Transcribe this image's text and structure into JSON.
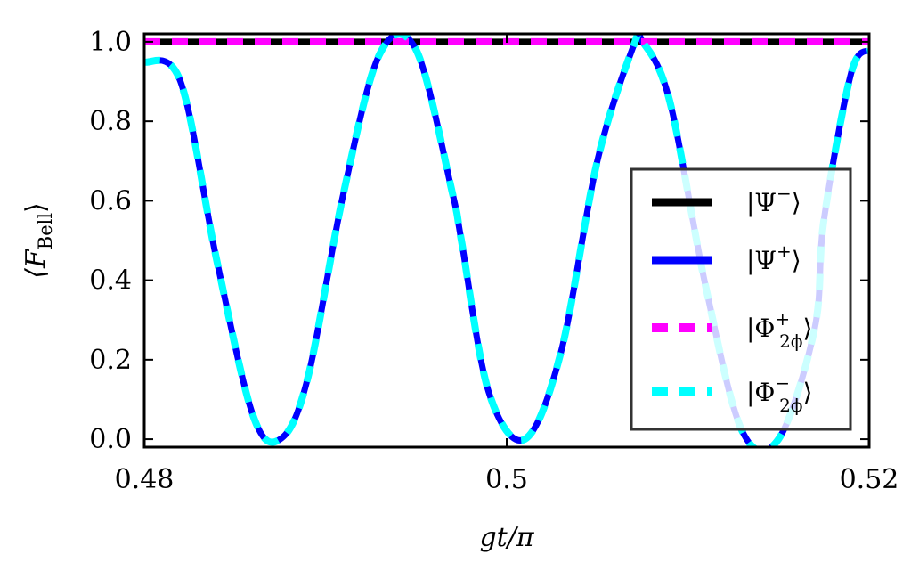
{
  "chart_data": {
    "type": "line",
    "title": "",
    "xlabel": "gt/π",
    "ylabel": "⟨F_Bell⟩",
    "ylabel_main": "⟨F",
    "ylabel_sub": "Bell",
    "ylabel_close": "⟩",
    "xlim": [
      0.48,
      0.52
    ],
    "ylim": [
      -0.02,
      1.02
    ],
    "xticks": [
      0.48,
      0.5,
      0.52
    ],
    "xtick_labels": [
      "0.48",
      "0.5",
      "0.52"
    ],
    "yticks": [
      0.0,
      0.2,
      0.4,
      0.6,
      0.8,
      1.0
    ],
    "ytick_labels": [
      "0.0",
      "0.2",
      "0.4",
      "0.6",
      "0.8",
      "1.0"
    ],
    "grid": false,
    "legend_position": "right",
    "series": [
      {
        "name": "|Ψ⁻⟩",
        "label_main": "|Ψ",
        "label_sup": "−",
        "label_sub": "",
        "label_close": "⟩",
        "color": "#000000",
        "style": "solid",
        "x": [
          0.48,
          0.52
        ],
        "y": [
          1.0,
          1.0
        ]
      },
      {
        "name": "|Ψ⁺⟩",
        "label_main": "|Ψ",
        "label_sup": "+",
        "label_sub": "",
        "label_close": "⟩",
        "color": "#0000ff",
        "style": "solid",
        "x": [
          0.48,
          0.482,
          0.484,
          0.486,
          0.4875,
          0.489,
          0.491,
          0.493,
          0.495,
          0.497,
          0.4975,
          0.499,
          0.501,
          0.503,
          0.505,
          0.507,
          0.5075,
          0.509,
          0.511,
          0.513,
          0.515,
          0.517,
          0.5175,
          0.519,
          0.52
        ],
        "y": [
          0.95,
          0.9,
          0.45,
          0.06,
          0.0,
          0.15,
          0.62,
          0.97,
          0.98,
          0.62,
          0.5,
          0.12,
          0.0,
          0.22,
          0.7,
          0.99,
          1.0,
          0.85,
          0.38,
          0.02,
          0.0,
          0.28,
          0.55,
          0.92,
          0.98
        ]
      },
      {
        "name": "|Φ₂ϕ⁺⟩",
        "label_main": "|Φ",
        "label_sup": "+",
        "label_sub": "2ϕ",
        "label_close": "⟩",
        "color": "#ff00ff",
        "style": "dashed",
        "x": [
          0.48,
          0.52
        ],
        "y": [
          1.0,
          1.0
        ]
      },
      {
        "name": "|Φ₂ϕ⁻⟩",
        "label_main": "|Φ",
        "label_sup": "−",
        "label_sub": "2ϕ",
        "label_close": "⟩",
        "color": "#00ffff",
        "style": "dashed",
        "x": [
          0.48,
          0.482,
          0.484,
          0.486,
          0.4875,
          0.489,
          0.491,
          0.493,
          0.495,
          0.497,
          0.4975,
          0.499,
          0.501,
          0.503,
          0.505,
          0.507,
          0.5075,
          0.509,
          0.511,
          0.513,
          0.515,
          0.517,
          0.5175,
          0.519,
          0.52
        ],
        "y": [
          0.95,
          0.9,
          0.45,
          0.06,
          0.0,
          0.15,
          0.62,
          0.97,
          0.98,
          0.62,
          0.5,
          0.12,
          0.0,
          0.22,
          0.7,
          0.99,
          1.0,
          0.85,
          0.38,
          0.02,
          0.0,
          0.28,
          0.55,
          0.92,
          0.98
        ]
      }
    ]
  }
}
